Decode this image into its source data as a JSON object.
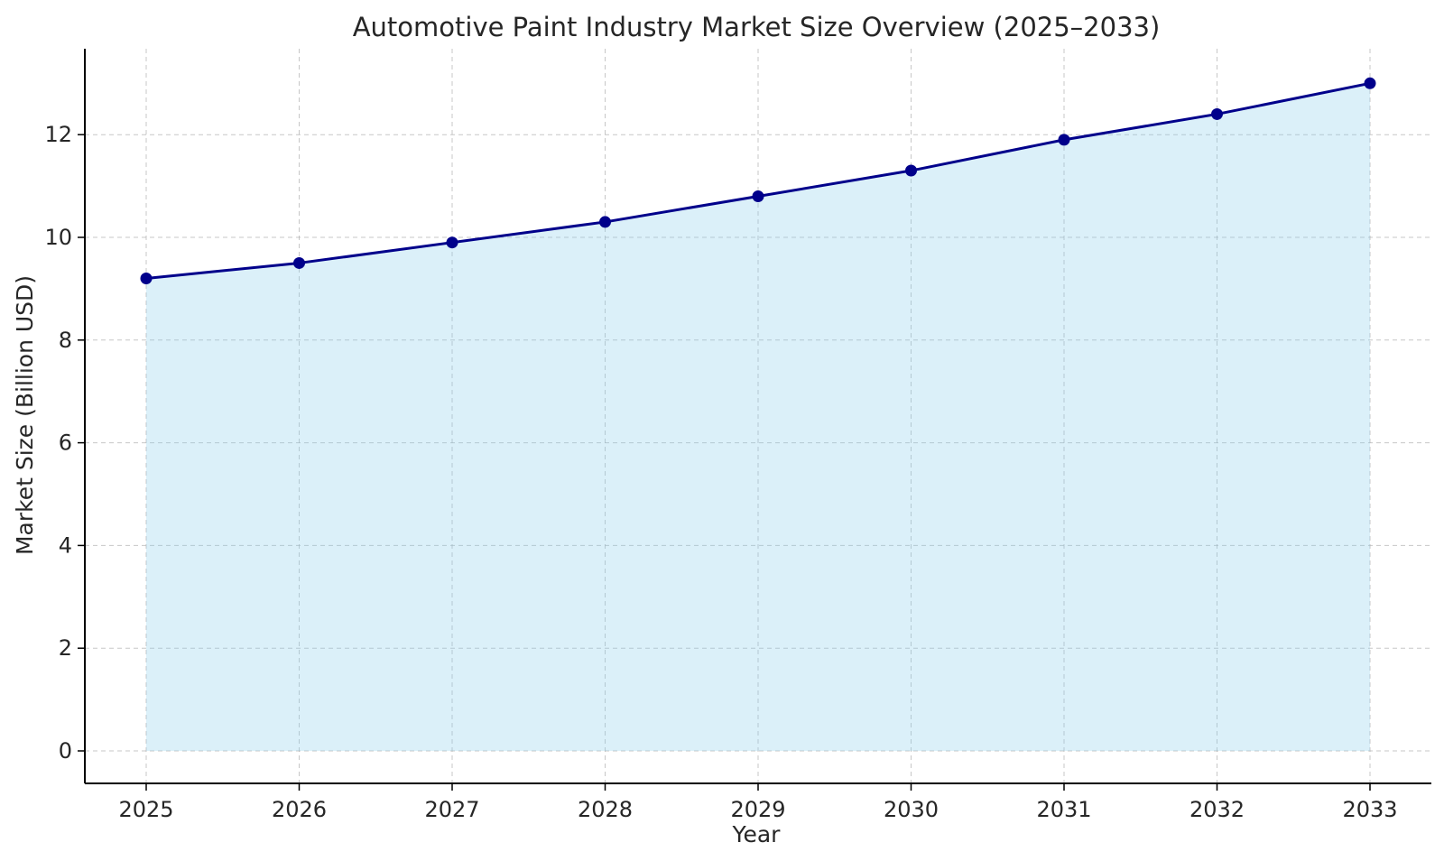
{
  "chart_data": {
    "type": "area",
    "title": "Automotive Paint Industry Market Size Overview (2025–2033)",
    "xlabel": "Year",
    "ylabel": "Market Size (Billion USD)",
    "x": [
      "2025",
      "2026",
      "2027",
      "2028",
      "2029",
      "2030",
      "2031",
      "2032",
      "2033"
    ],
    "series": [
      {
        "values": [
          9.2,
          9.5,
          9.9,
          10.3,
          10.8,
          11.3,
          11.9,
          12.4,
          13.0
        ]
      }
    ],
    "yticks": [
      "0",
      "2",
      "4",
      "6",
      "8",
      "10",
      "12"
    ],
    "ylim": [
      -0.65,
      13.65
    ],
    "grid": true,
    "colors": {
      "line": "#00008b",
      "fill": "#87ceeb",
      "grid": "#b0b0b0",
      "axis": "#000000"
    }
  }
}
